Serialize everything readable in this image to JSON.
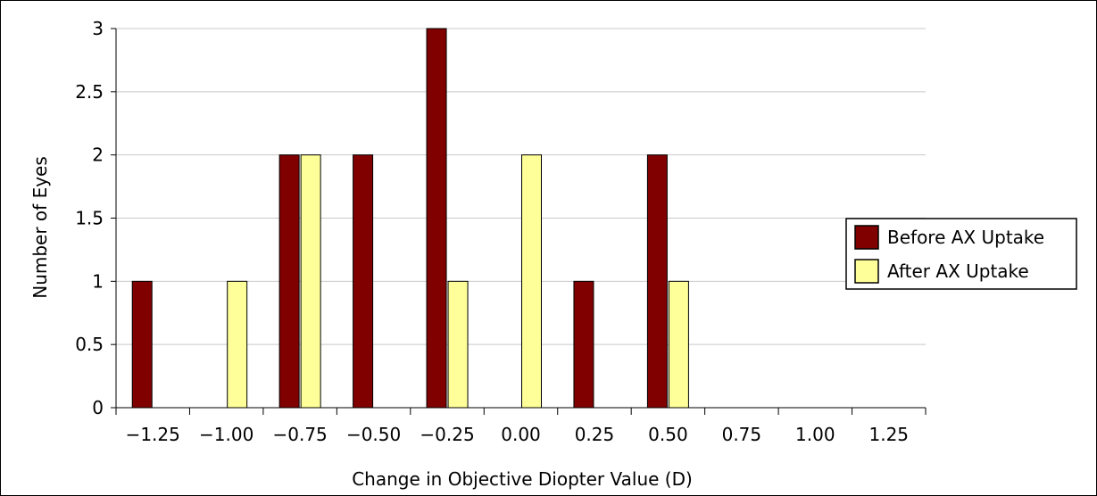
{
  "chart_data": {
    "type": "bar",
    "title": "",
    "xlabel": "Change in Objective Diopter Value (D)",
    "ylabel": "Number of Eyes",
    "categories": [
      "-1.25",
      "-1.00",
      "-0.75",
      "-0.50",
      "-0.25",
      "0.00",
      "0.25",
      "0.50",
      "0.75",
      "1.00",
      "1.25"
    ],
    "series": [
      {
        "name": "Before AX Uptake",
        "color": "#800000",
        "values": [
          1,
          0,
          2,
          2,
          3,
          0,
          1,
          2,
          0,
          0,
          0
        ]
      },
      {
        "name": "After AX Uptake",
        "color": "#ffff99",
        "values": [
          0,
          1,
          2,
          0,
          1,
          2,
          0,
          1,
          0,
          0,
          0
        ]
      }
    ],
    "ylim": [
      0,
      3
    ],
    "yticks": [
      "0",
      "0.5",
      "1",
      "1.5",
      "2",
      "2.5",
      "3"
    ],
    "grid": true,
    "legend": "right"
  }
}
